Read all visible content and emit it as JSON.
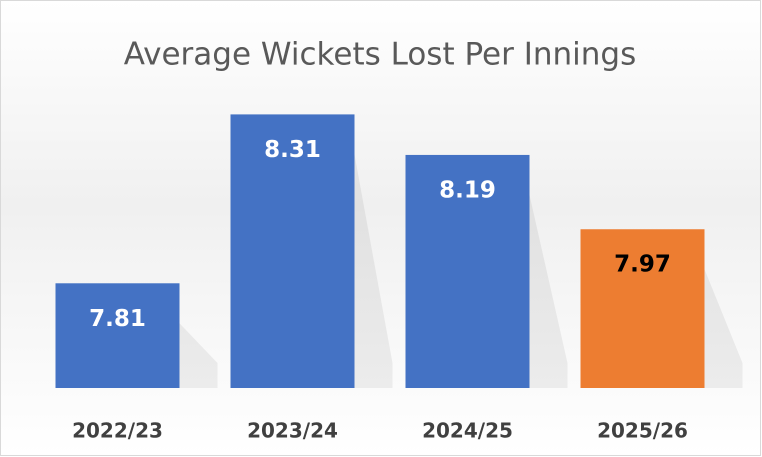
{
  "chart_data": {
    "type": "bar",
    "title": "Average Wickets Lost Per Innings",
    "categories": [
      "2022/23",
      "2023/24",
      "2024/25",
      "2025/26"
    ],
    "values": [
      7.81,
      8.31,
      8.19,
      7.97
    ],
    "colors": [
      "#4472c4",
      "#4472c4",
      "#4472c4",
      "#ed7d31"
    ],
    "label_colors": [
      "#ffffff",
      "#ffffff",
      "#ffffff",
      "#000000"
    ],
    "ylim": [
      7.5,
      8.4
    ]
  }
}
